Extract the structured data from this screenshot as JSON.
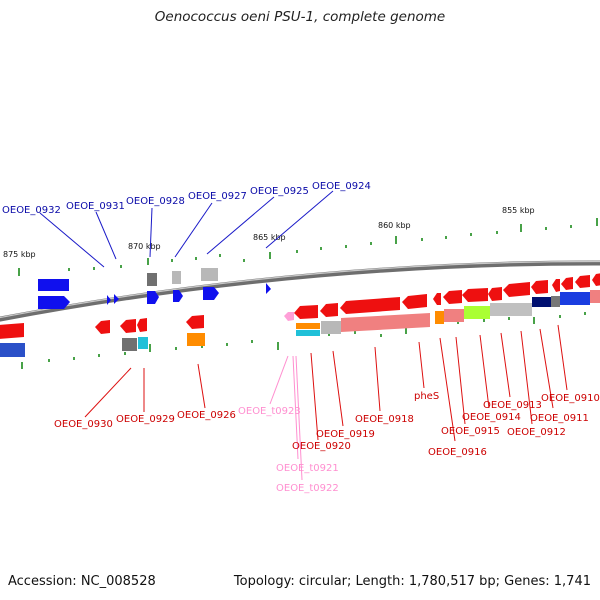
{
  "title": "Oenococcus oeni PSU-1, complete genome",
  "footer": {
    "accession": "Accession: NC_008528",
    "summary": "Topology: circular; Length: 1,780,517 bp; Genes: 1,741"
  },
  "colors": {
    "plus_label": "#0a0aa8",
    "minus_label": "#cc0000",
    "trna_label": "#ff8fd0",
    "plus_cds": "#0000ee",
    "minus_cds": "#ff0000",
    "backbone": "#8a8a8a",
    "tick": "#1a8a1a"
  },
  "scale": {
    "ticks": [
      {
        "label": "875 kbp"
      },
      {
        "label": "870 kbp"
      },
      {
        "label": "865 kbp"
      },
      {
        "label": "860 kbp"
      },
      {
        "label": "855 kbp"
      }
    ]
  },
  "genes": {
    "plus_strand": [
      {
        "label": "OEOE_0932"
      },
      {
        "label": "OEOE_0931"
      },
      {
        "label": "OEOE_0928"
      },
      {
        "label": "OEOE_0927"
      },
      {
        "label": "OEOE_0925"
      },
      {
        "label": "OEOE_0924"
      }
    ],
    "minus_strand": [
      {
        "label": "OEOE_0930"
      },
      {
        "label": "OEOE_0929"
      },
      {
        "label": "OEOE_0926"
      },
      {
        "label": "OEOE_t0923"
      },
      {
        "label": "OEOE_0920"
      },
      {
        "label": "OEOE_t0921"
      },
      {
        "label": "OEOE_t0922"
      },
      {
        "label": "OEOE_0919"
      },
      {
        "label": "OEOE_0918"
      },
      {
        "label": "pheS"
      },
      {
        "label": "OEOE_0916"
      },
      {
        "label": "OEOE_0915"
      },
      {
        "label": "OEOE_0914"
      },
      {
        "label": "OEOE_0913"
      },
      {
        "label": "OEOE_0912"
      },
      {
        "label": "OEOE_0911"
      },
      {
        "label": "OEOE_0910"
      }
    ]
  }
}
